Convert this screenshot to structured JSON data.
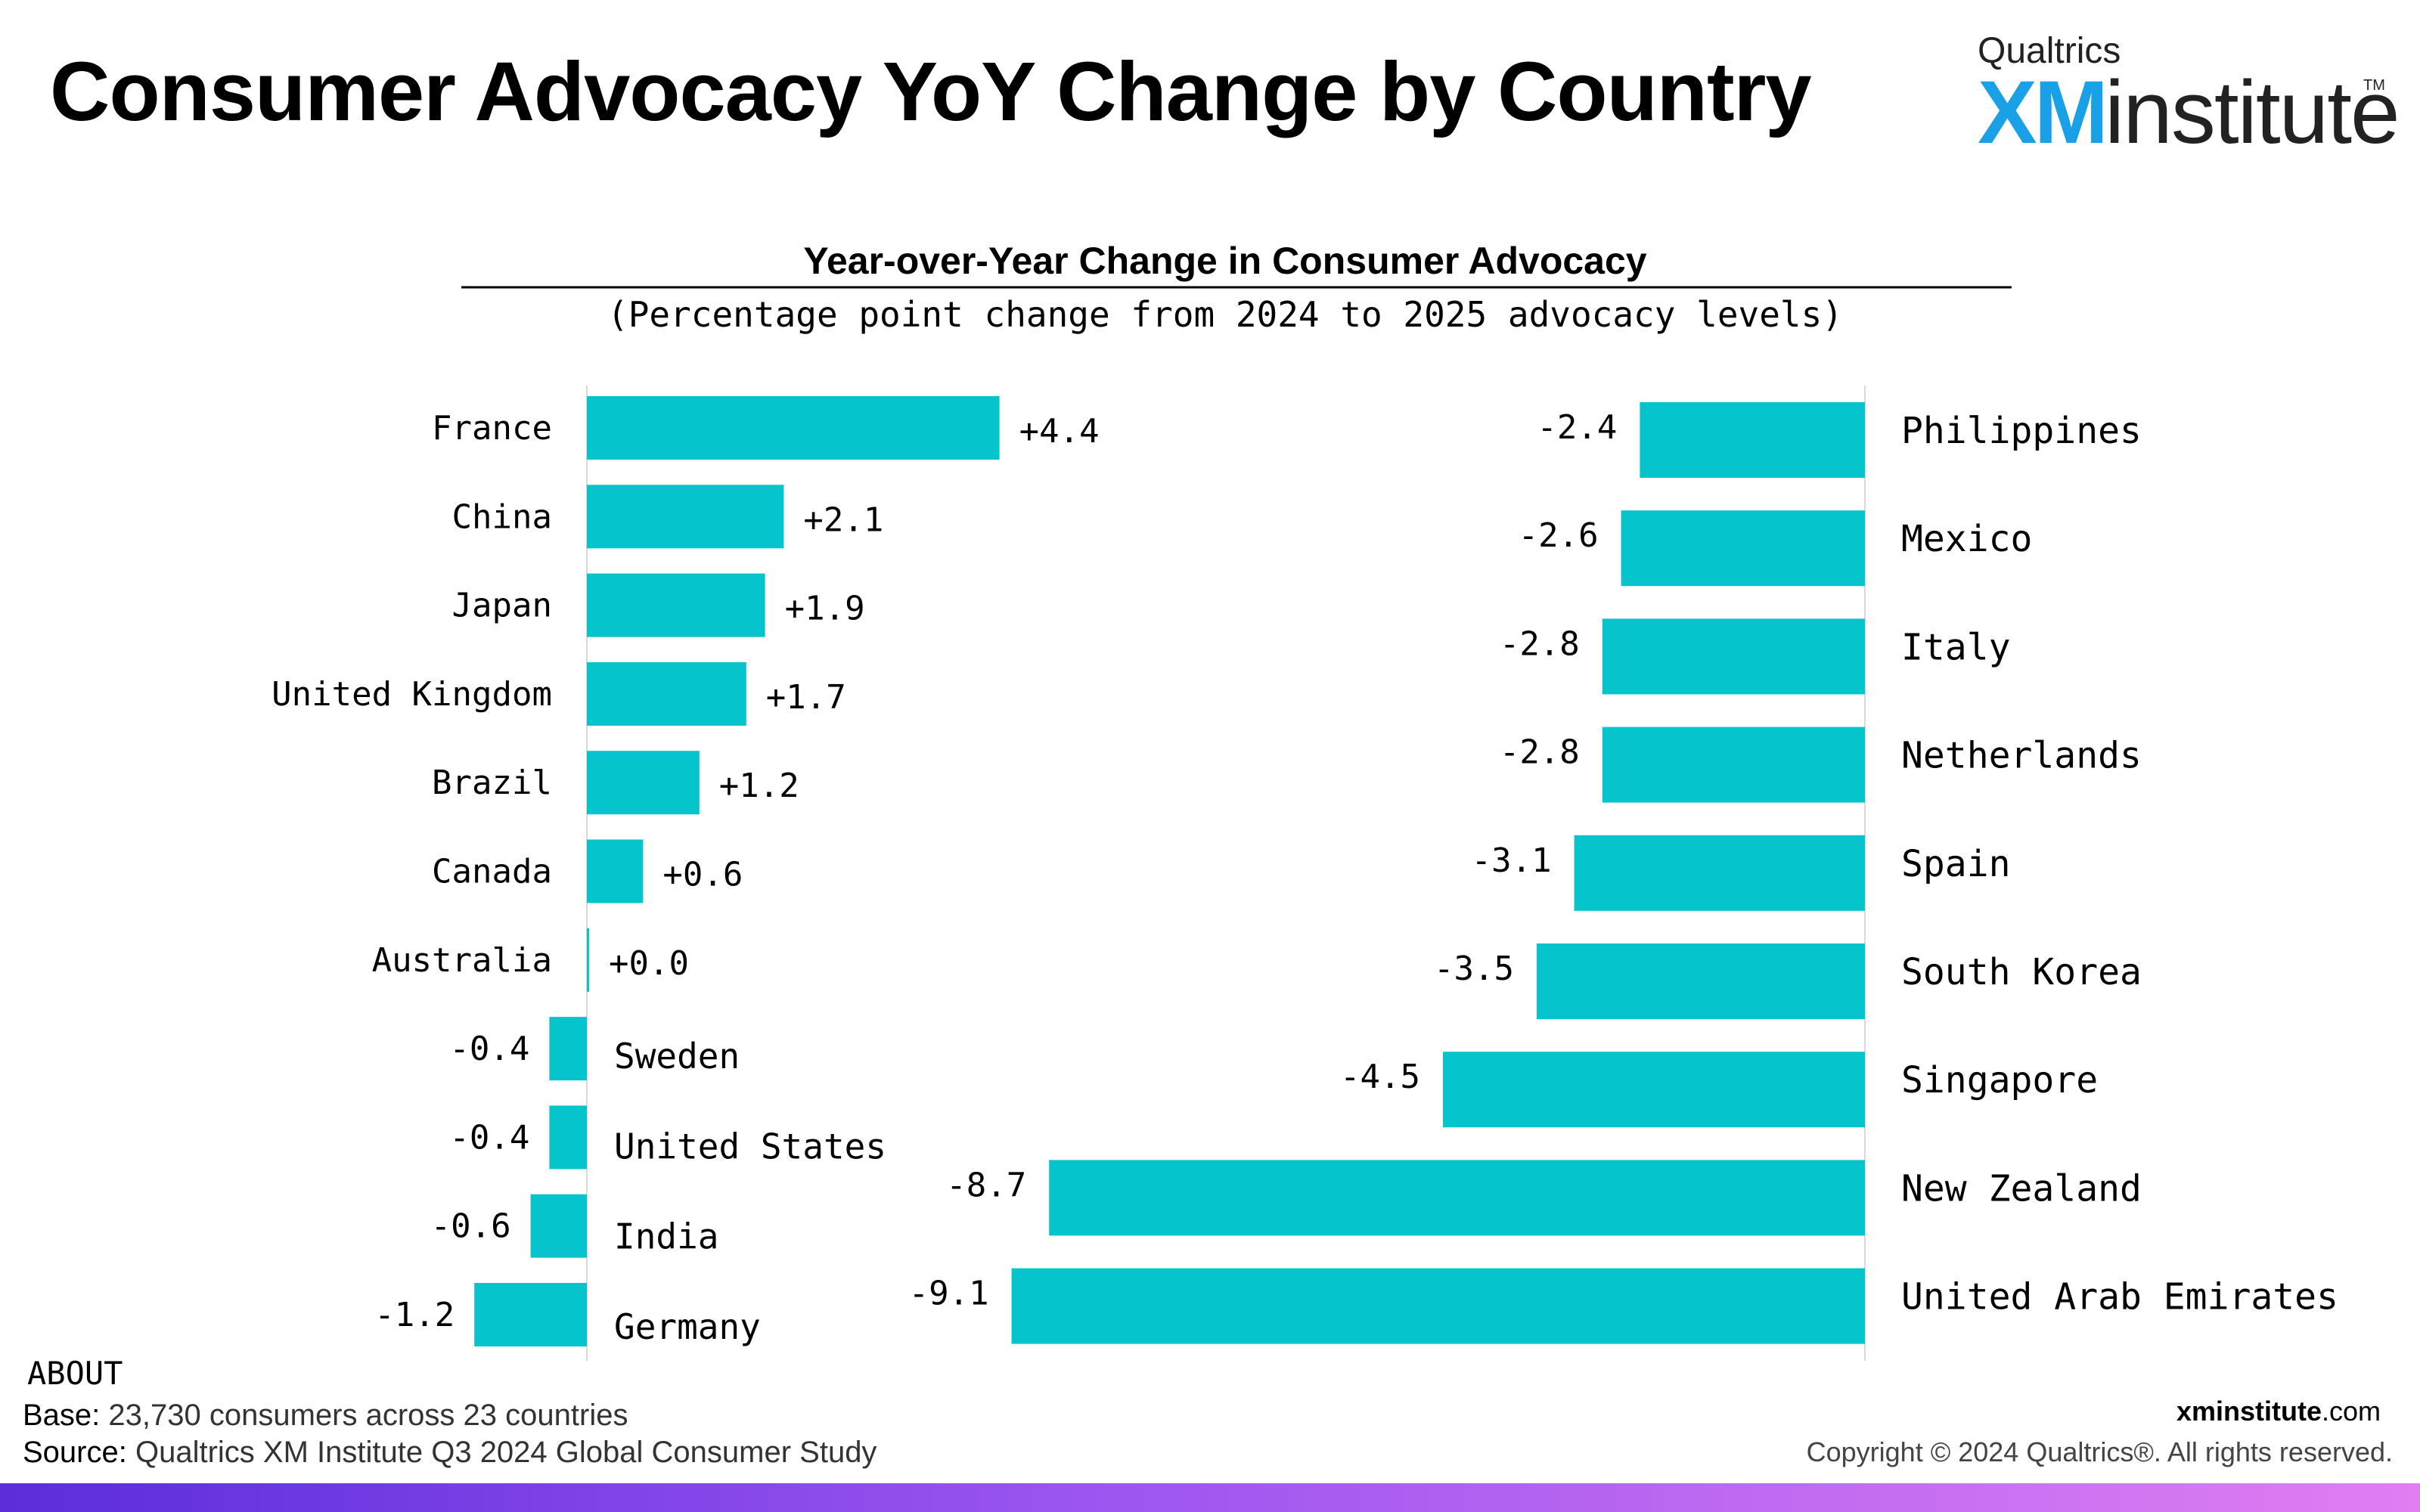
{
  "header": {
    "title": "Consumer Advocacy YoY Change by Country",
    "logo": {
      "brand": "Qualtrics",
      "xm": "XM",
      "institute": "institute",
      "tm": "TM"
    }
  },
  "chart_data": {
    "type": "bar",
    "orientation": "horizontal",
    "title": "Year-over-Year Change in Consumer Advocacy",
    "subtitle": "(Percentage point change from 2024 to 2025 advocacy levels)",
    "bar_color": "#06C4CC",
    "panels": [
      {
        "categories": [
          "France",
          "China",
          "Japan",
          "United Kingdom",
          "Brazil",
          "Canada",
          "Australia",
          "Sweden",
          "United States",
          "India",
          "Germany"
        ],
        "values": [
          4.4,
          2.1,
          1.9,
          1.7,
          1.2,
          0.6,
          0.0,
          -0.4,
          -0.4,
          -0.6,
          -1.2
        ],
        "labels": [
          "+4.4",
          "+2.1",
          "+1.9",
          "+1.7",
          "+1.2",
          "+0.6",
          "+0.0",
          "-0.4",
          "-0.4",
          "-0.6",
          "-1.2"
        ]
      },
      {
        "categories": [
          "Philippines",
          "Mexico",
          "Italy",
          "Netherlands",
          "Spain",
          "South Korea",
          "Singapore",
          "New Zealand",
          "United Arab Emirates"
        ],
        "values": [
          -2.4,
          -2.6,
          -2.8,
          -2.8,
          -3.1,
          -3.5,
          -4.5,
          -8.7,
          -9.1
        ],
        "labels": [
          "-2.4",
          "-2.6",
          "-2.8",
          "-2.8",
          "-3.1",
          "-3.5",
          "-4.5",
          "-8.7",
          "-9.1"
        ]
      }
    ]
  },
  "footer": {
    "about_heading": "ABOUT",
    "base_label": "Base:",
    "base_text": "23,730 consumers across 23 countries",
    "source_label": "Source:",
    "source_text": "Qualtrics XM Institute Q3 2024 Global Consumer Study",
    "site_bold": "xminstitute",
    "site_rest": ".com",
    "copyright": "Copyright © 2024 Qualtrics®. All rights reserved."
  }
}
